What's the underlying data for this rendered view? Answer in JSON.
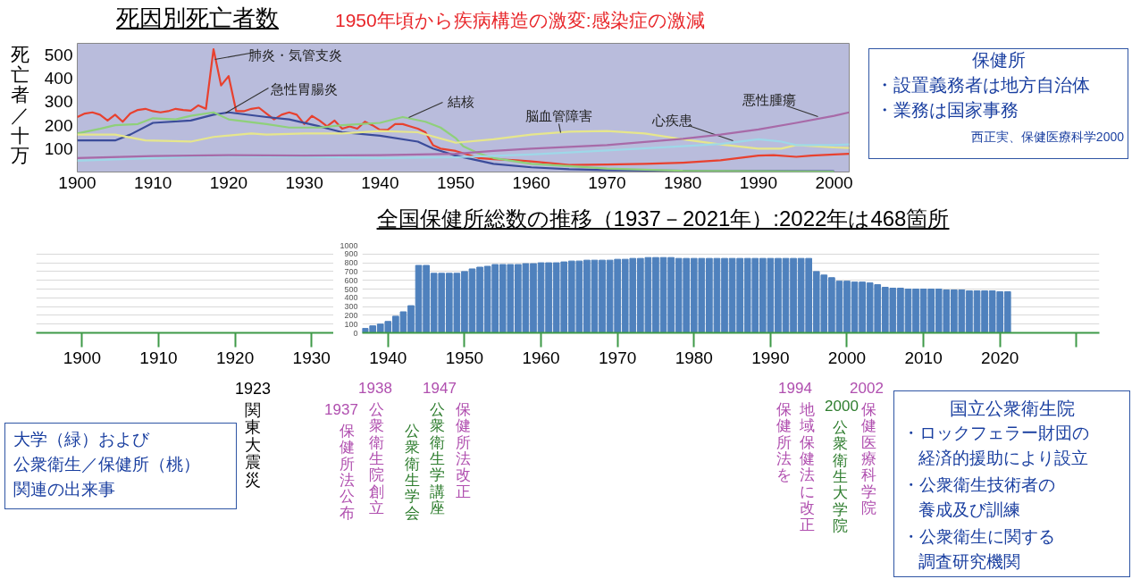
{
  "chart_data": [
    {
      "type": "line",
      "title": "死因別死亡者数",
      "subtitle": "1950年頃から疾病構造の激変:感染症の激減",
      "ylabel": "死亡者／十万",
      "xlim": [
        1900,
        2002
      ],
      "ylim": [
        0,
        550
      ],
      "xticks": [
        1900,
        1910,
        1920,
        1930,
        1940,
        1950,
        1960,
        1970,
        1980,
        1990,
        2000
      ],
      "yticks": [
        100,
        200,
        300,
        400,
        500
      ],
      "grid": false,
      "marker": "none",
      "line_style": "solid",
      "series": [
        {
          "name": "肺炎・気管支炎",
          "color": "#e8412f",
          "x": [
            1900,
            1901,
            1902,
            1903,
            1904,
            1905,
            1906,
            1907,
            1908,
            1909,
            1910,
            1911,
            1912,
            1913,
            1914,
            1915,
            1916,
            1917,
            1918,
            1919,
            1920,
            1921,
            1922,
            1923,
            1924,
            1925,
            1926,
            1927,
            1928,
            1929,
            1930,
            1931,
            1932,
            1933,
            1934,
            1935,
            1936,
            1937,
            1938,
            1939,
            1940,
            1941,
            1942,
            1943,
            1944,
            1945,
            1946,
            1947,
            1948,
            1949,
            1950,
            1951,
            1952,
            1953,
            1955,
            1958,
            1960,
            1965,
            1970,
            1975,
            1980,
            1985,
            1990,
            1992,
            1995,
            1997,
            2000,
            2002
          ],
          "values": [
            235,
            250,
            255,
            245,
            220,
            245,
            215,
            250,
            265,
            270,
            260,
            255,
            260,
            270,
            265,
            262,
            285,
            270,
            525,
            370,
            410,
            260,
            260,
            270,
            275,
            250,
            225,
            245,
            255,
            245,
            205,
            240,
            220,
            195,
            220,
            185,
            195,
            185,
            215,
            200,
            180,
            180,
            205,
            205,
            195,
            185,
            170,
            115,
            100,
            95,
            90,
            80,
            70,
            60,
            55,
            50,
            45,
            30,
            32,
            35,
            40,
            50,
            70,
            72,
            65,
            70,
            75,
            78
          ]
        },
        {
          "name": "急性胃腸炎",
          "color": "#3b4c9a",
          "x": [
            1900,
            1905,
            1907,
            1910,
            1915,
            1918,
            1920,
            1925,
            1928,
            1932,
            1935,
            1940,
            1945,
            1947,
            1950,
            1955,
            1960,
            1965,
            1970,
            1980,
            2000
          ],
          "values": [
            135,
            135,
            160,
            210,
            220,
            245,
            255,
            235,
            225,
            195,
            170,
            155,
            130,
            100,
            70,
            35,
            20,
            12,
            8,
            5,
            3
          ]
        },
        {
          "name": "結核",
          "color": "#8fd07a",
          "x": [
            1900,
            1903,
            1905,
            1908,
            1910,
            1913,
            1915,
            1918,
            1920,
            1925,
            1928,
            1932,
            1935,
            1940,
            1943,
            1946,
            1948,
            1950,
            1951,
            1953,
            1955,
            1960,
            1965,
            1970,
            1980,
            1990,
            2000
          ],
          "values": [
            165,
            185,
            200,
            205,
            230,
            225,
            240,
            255,
            225,
            205,
            190,
            190,
            200,
            210,
            235,
            215,
            190,
            145,
            110,
            80,
            60,
            35,
            25,
            15,
            5,
            3,
            2
          ]
        },
        {
          "name": "脳血管障害",
          "color": "#e6e68c",
          "x": [
            1900,
            1905,
            1909,
            1915,
            1918,
            1923,
            1925,
            1930,
            1935,
            1940,
            1945,
            1950,
            1955,
            1960,
            1965,
            1970,
            1975,
            1980,
            1985,
            1990,
            1993,
            1995,
            2000,
            2002
          ],
          "values": [
            160,
            160,
            135,
            130,
            150,
            165,
            160,
            165,
            165,
            175,
            170,
            125,
            140,
            160,
            172,
            175,
            165,
            140,
            118,
            100,
            100,
            115,
            105,
            103
          ]
        },
        {
          "name": "心疾患",
          "color": "#9ed8e8",
          "x": [
            1900,
            1910,
            1918,
            1930,
            1940,
            1950,
            1960,
            1970,
            1980,
            1985,
            1990,
            1993,
            1995,
            2000,
            2002
          ],
          "values": [
            48,
            60,
            70,
            65,
            60,
            63,
            75,
            92,
            110,
            120,
            140,
            130,
            115,
            115,
            118
          ]
        },
        {
          "name": "悪性腫瘍",
          "color": "#a86aa8",
          "x": [
            1900,
            1910,
            1920,
            1930,
            1940,
            1950,
            1955,
            1960,
            1970,
            1980,
            1985,
            1990,
            1995,
            2000,
            2002
          ],
          "values": [
            60,
            68,
            72,
            70,
            72,
            78,
            90,
            100,
            115,
            142,
            160,
            182,
            210,
            240,
            255
          ]
        }
      ],
      "annotations": [
        "保健所",
        "・設置義務者は地方自治体",
        "・業務は国家事務",
        "西正実、保健医療科学2000"
      ]
    },
    {
      "type": "bar",
      "title": "全国保健所総数の推移（1937－2021年）:2022年は468箇所",
      "color": "#4f81bd",
      "x": [
        1937,
        1938,
        1939,
        1940,
        1941,
        1942,
        1943,
        1944,
        1945,
        1946,
        1947,
        1948,
        1949,
        1950,
        1951,
        1952,
        1953,
        1954,
        1955,
        1956,
        1957,
        1958,
        1959,
        1960,
        1961,
        1962,
        1963,
        1964,
        1965,
        1966,
        1967,
        1968,
        1969,
        1970,
        1971,
        1972,
        1973,
        1974,
        1975,
        1976,
        1977,
        1978,
        1979,
        1980,
        1981,
        1982,
        1983,
        1984,
        1985,
        1986,
        1987,
        1988,
        1989,
        1990,
        1991,
        1992,
        1993,
        1994,
        1995,
        1996,
        1997,
        1998,
        1999,
        2000,
        2001,
        2002,
        2003,
        2004,
        2005,
        2006,
        2007,
        2008,
        2009,
        2010,
        2011,
        2012,
        2013,
        2014,
        2015,
        2016,
        2017,
        2018,
        2019,
        2020,
        2021
      ],
      "values": [
        50,
        80,
        100,
        130,
        190,
        240,
        310,
        770,
        770,
        680,
        680,
        680,
        680,
        700,
        730,
        750,
        760,
        780,
        780,
        780,
        780,
        790,
        790,
        800,
        800,
        800,
        810,
        820,
        820,
        830,
        830,
        830,
        830,
        840,
        840,
        850,
        850,
        860,
        860,
        860,
        860,
        850,
        850,
        850,
        850,
        850,
        850,
        850,
        850,
        850,
        850,
        850,
        850,
        850,
        850,
        850,
        850,
        850,
        850,
        700,
        660,
        630,
        590,
        590,
        580,
        580,
        570,
        550,
        520,
        510,
        510,
        500,
        500,
        500,
        500,
        500,
        490,
        490,
        490,
        480,
        480,
        480,
        480,
        470,
        470
      ],
      "xlim": [
        1894,
        2033
      ],
      "ylim": [
        0,
        1000
      ],
      "xticks": [
        1900,
        1910,
        1920,
        1930,
        1940,
        1950,
        1960,
        1970,
        1980,
        1990,
        2000,
        2010,
        2020,
        {
          "value": 2030,
          "label": null
        }
      ],
      "yticks": [
        0,
        100,
        200,
        300,
        400,
        500,
        600,
        700,
        800,
        900,
        1000
      ],
      "grid": "y",
      "annotations": [
        "1923",
        "関東大震災",
        "1937",
        "保健所法公布",
        "1938",
        "公衆衛生院創立",
        "公衆衛生学会",
        "公衆衛生学講座",
        "1947",
        "保健所法改正",
        "1994",
        "保健所法を",
        "地域保健法に改正",
        "2000",
        "公衆衛生大学院",
        "2002",
        "保健医療科学院",
        "大学（緑）および",
        "公衆衛生／保健所（桃）",
        "関連の出来事",
        "国立公衆衛生院",
        "・ロックフェラー財団の",
        "経済的援助により設立",
        "・公衆衛生技術者の",
        "養成及び訓練",
        "・公衆衛生に関する",
        "調査研究機関"
      ]
    }
  ]
}
